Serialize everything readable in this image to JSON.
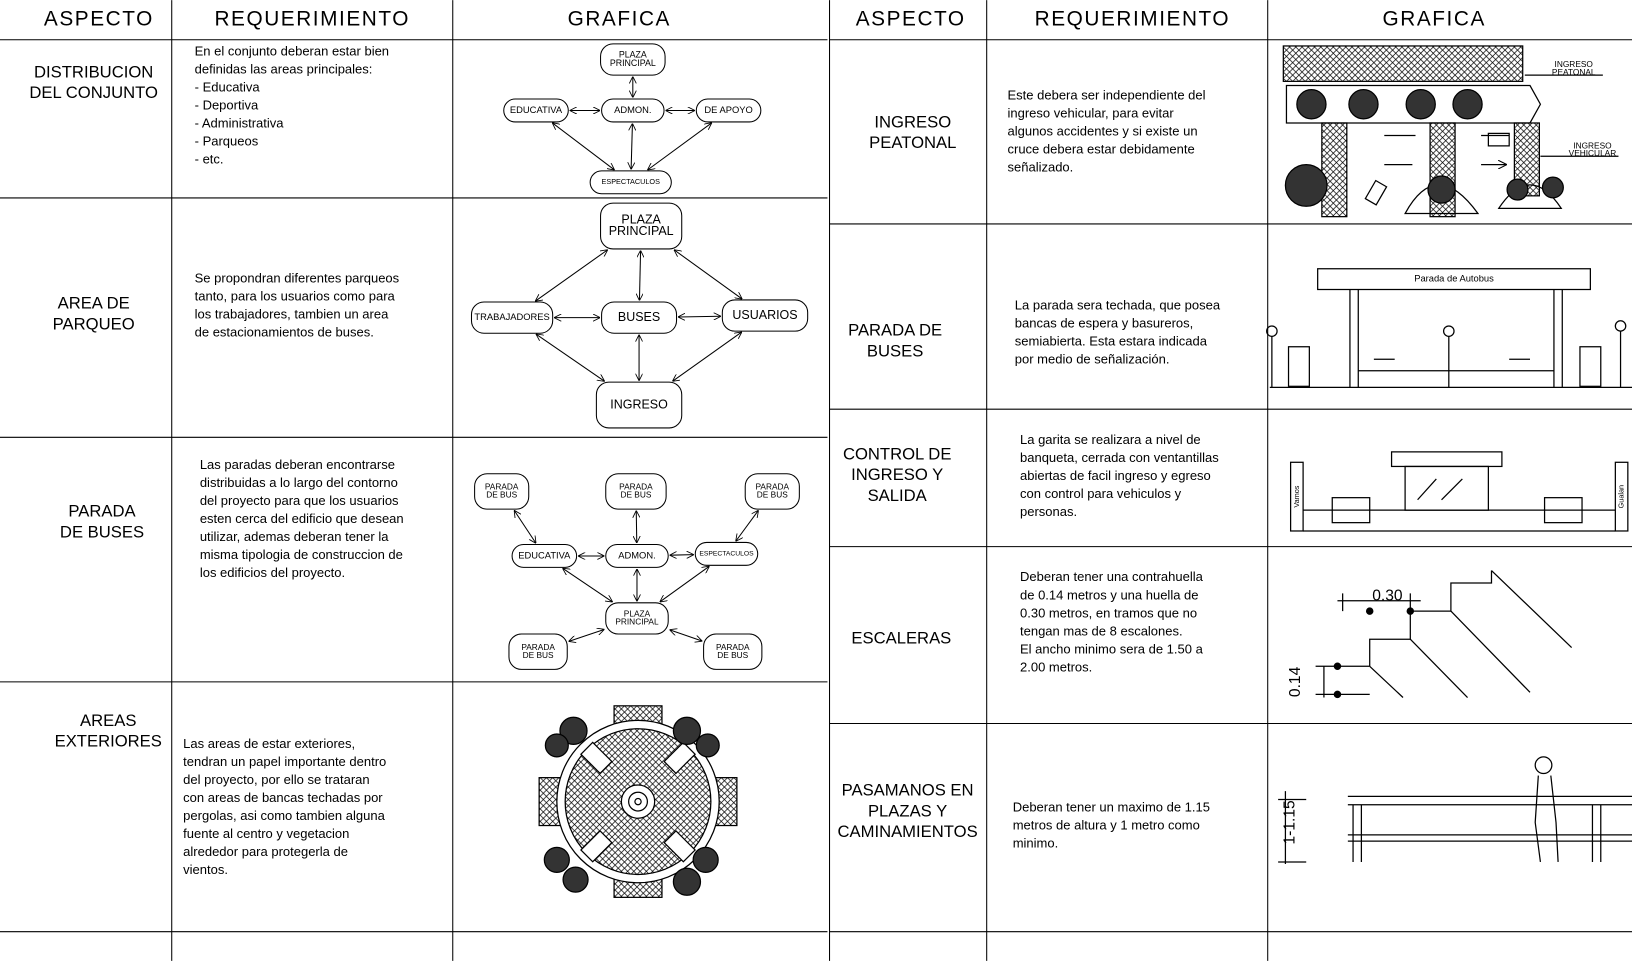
{
  "left": {
    "headers": [
      "ASPECTO",
      "REQUERIMIENTO",
      "GRAFICA"
    ],
    "rows": [
      {
        "aspect": [
          "DISTRIBUCION",
          "DEL CONJUNTO"
        ],
        "requirement": [
          "En el conjunto deberan estar bien",
          "definidas las areas principales:",
          "- Educativa",
          "- Deportiva",
          "- Administrativa",
          "- Parqueos",
          "- etc."
        ],
        "graphic_labels": [
          [
            "PLAZA",
            "PRINCIPAL"
          ],
          [
            "ADMON."
          ],
          [
            "EDUCATIVA"
          ],
          [
            "DE APOYO"
          ],
          [
            "ESPECTACULOS"
          ]
        ]
      },
      {
        "aspect": [
          "AREA DE",
          "PARQUEO"
        ],
        "requirement": [
          "Se propondran diferentes parqueos",
          "tanto, para los usuarios como para",
          "los trabajadores, tambien un area",
          "de estacionamientos de buses."
        ],
        "graphic_labels": [
          [
            "PLAZA",
            "PRINCIPAL"
          ],
          [
            "BUSES"
          ],
          [
            "TRABAJADORES"
          ],
          [
            "USUARIOS"
          ],
          [
            "INGRESO"
          ]
        ]
      },
      {
        "aspect": [
          "PARADA",
          "DE BUSES"
        ],
        "requirement": [
          "Las paradas deberan encontrarse",
          "distribuidas a lo largo del contorno",
          "del proyecto para que los usuarios",
          "esten cerca del edificio que desean",
          "utilizar, ademas deberan tener la",
          "misma tipologia de construccion de",
          "los edificios del proyecto."
        ],
        "graphic_labels": [
          [
            "PARADA",
            "DE BUS"
          ],
          [
            "PARADA",
            "DE BUS"
          ],
          [
            "PARADA",
            "DE BUS"
          ],
          [
            "EDUCATIVA"
          ],
          [
            "ADMON."
          ],
          [
            "ESPECTACULOS"
          ],
          [
            "PLAZA",
            "PRINCIPAL"
          ],
          [
            "PARADA",
            "DE BUS"
          ],
          [
            "PARADA",
            "DE BUS"
          ]
        ]
      },
      {
        "aspect": [
          "AREAS",
          "EXTERIORES"
        ],
        "requirement": [
          " Las areas de estar exteriores,",
          "tendran un papel importante dentro",
          "del proyecto, por ello se trataran",
          "con areas de bancas techadas por",
          "pergolas, asi como tambien alguna",
          "fuente al centro y vegetacion",
          "alrededor para protegerla de",
          "vientos."
        ],
        "graphic_labels": []
      }
    ]
  },
  "right": {
    "headers": [
      "ASPECTO",
      "REQUERIMIENTO",
      "GRAFICA"
    ],
    "rows": [
      {
        "aspect": [
          "INGRESO",
          "PEATONAL"
        ],
        "requirement": [
          "Este debera  ser independiente del",
          "ingreso vehicular, para evitar",
          "algunos accidentes y si existe un",
          "cruce debera  estar debidamente",
          "señalizado."
        ],
        "graphic_labels": [
          [
            "INGRESO",
            "PEATONAL"
          ],
          [
            "INGRESO",
            "VEHICULAR"
          ]
        ]
      },
      {
        "aspect": [
          "PARADA DE",
          "BUSES"
        ],
        "requirement": [
          "La parada sera techada, que posea",
          "bancas de espera y basureros,",
          "semiabierta. Esta estara indicada",
          "por medio de señalización."
        ],
        "graphic_labels": [
          [
            "Parada de Autobus"
          ]
        ]
      },
      {
        "aspect": [
          "CONTROL DE",
          "INGRESO Y",
          "SALIDA"
        ],
        "requirement": [
          "La garita se realizara a nivel de",
          "banqueta, cerrada con ventantillas",
          "abiertas de facil ingreso y egreso",
          "con control para vehiculos y",
          "personas."
        ],
        "graphic_labels": [
          [
            "Vamos"
          ],
          [
            "Gualan"
          ]
        ]
      },
      {
        "aspect": [
          "ESCALERAS"
        ],
        "requirement": [
          "Deberan  tener una contrahuella",
          "de 0.14 metros y una huella de",
          "0.30 metros, en tramos que no",
          "tengan mas de 8 escalones.",
          "El ancho minimo sera de 1.50 a",
          "2.00 metros."
        ],
        "graphic_labels": [
          [
            "0.30"
          ],
          [
            "0.14"
          ]
        ]
      },
      {
        "aspect": [
          "PASAMANOS EN",
          "PLAZAS Y",
          "CAMINAMIENTOS"
        ],
        "requirement": [
          "Deberan tener un maximo de 1.15",
          "metros de altura y 1 metro como",
          "minimo."
        ],
        "graphic_labels": [
          [
            "1-1.15"
          ]
        ]
      }
    ]
  }
}
